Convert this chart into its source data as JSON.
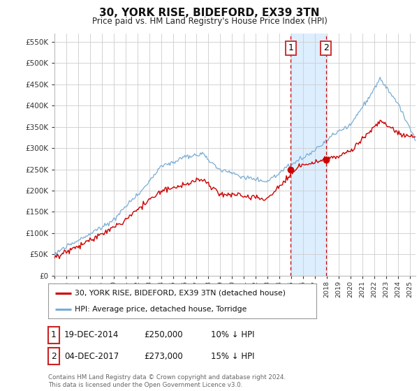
{
  "title": "30, YORK RISE, BIDEFORD, EX39 3TN",
  "subtitle": "Price paid vs. HM Land Registry's House Price Index (HPI)",
  "ylabel_ticks": [
    "£0",
    "£50K",
    "£100K",
    "£150K",
    "£200K",
    "£250K",
    "£300K",
    "£350K",
    "£400K",
    "£450K",
    "£500K",
    "£550K"
  ],
  "ytick_values": [
    0,
    50000,
    100000,
    150000,
    200000,
    250000,
    300000,
    350000,
    400000,
    450000,
    500000,
    550000
  ],
  "ylim": [
    0,
    570000
  ],
  "xlim_start": 1995.0,
  "xlim_end": 2025.5,
  "sale1_x": 2014.96,
  "sale1_y": 250000,
  "sale2_x": 2017.92,
  "sale2_y": 273000,
  "sale1_label": "1",
  "sale2_label": "2",
  "vline1_x": 2014.96,
  "vline2_x": 2017.92,
  "shade_x1": 2014.96,
  "shade_x2": 2017.92,
  "legend_line1": "30, YORK RISE, BIDEFORD, EX39 3TN (detached house)",
  "legend_line2": "HPI: Average price, detached house, Torridge",
  "table_row1": [
    "1",
    "19-DEC-2014",
    "£250,000",
    "10% ↓ HPI"
  ],
  "table_row2": [
    "2",
    "04-DEC-2017",
    "£273,000",
    "15% ↓ HPI"
  ],
  "footer": "Contains HM Land Registry data © Crown copyright and database right 2024.\nThis data is licensed under the Open Government Licence v3.0.",
  "hpi_color": "#7aadd4",
  "sold_color": "#cc0000",
  "shade_color": "#ddeeff",
  "vline_color": "#cc0000",
  "grid_color": "#cccccc",
  "background_color": "#ffffff",
  "n_points": 367
}
